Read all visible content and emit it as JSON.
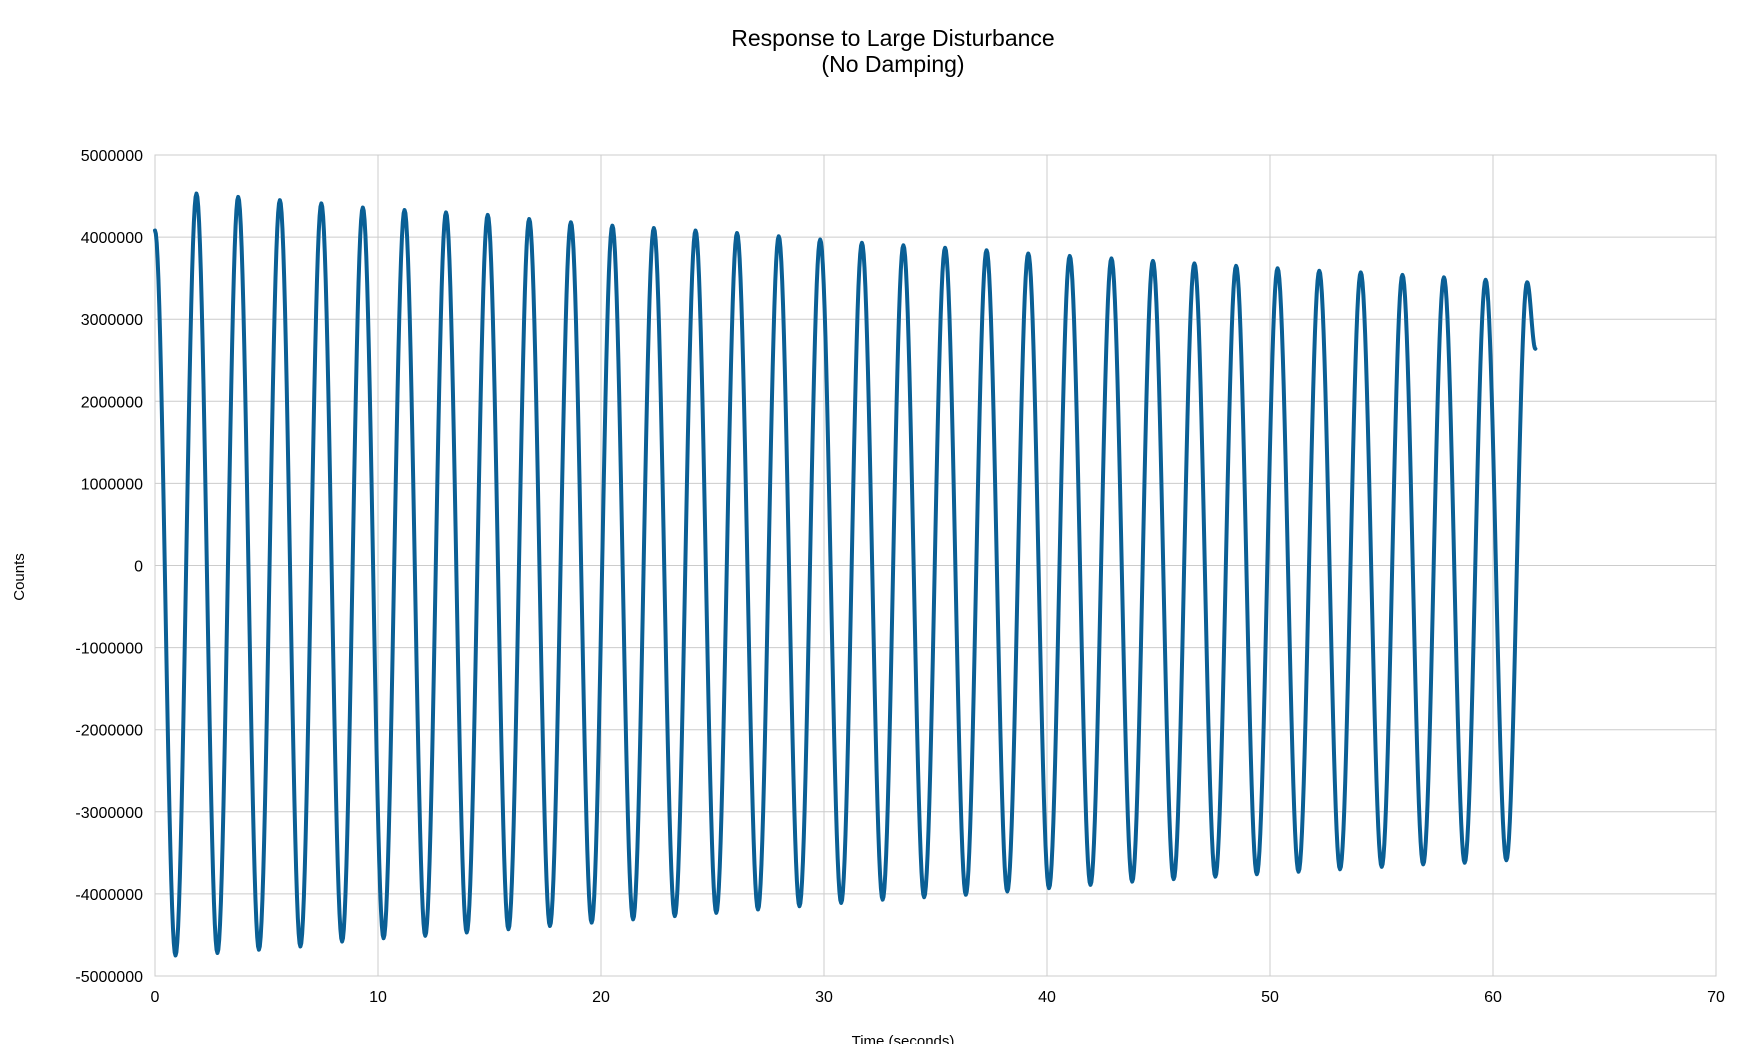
{
  "chart_data": {
    "type": "line",
    "title": [
      "Response to Large Disturbance",
      "(No Damping)"
    ],
    "xlabel": "Time (seconds)",
    "ylabel": "Counts",
    "xlim": [
      0,
      70
    ],
    "ylim": [
      -5000000,
      5000000
    ],
    "x_ticks": [
      0,
      10,
      20,
      30,
      40,
      50,
      60,
      70
    ],
    "y_ticks": [
      5000000,
      4000000,
      3000000,
      2000000,
      1000000,
      0,
      -1000000,
      -2000000,
      -3000000,
      -4000000,
      -5000000
    ],
    "grid": true,
    "legend": "none",
    "series_color": "#0a5f95",
    "series": [
      {
        "x": [
          0.0,
          0.92,
          1.86,
          2.8,
          3.73,
          4.66,
          5.6,
          6.52,
          7.46,
          8.39,
          9.32,
          10.25,
          11.19,
          12.12,
          13.05,
          13.98,
          14.92,
          15.85,
          16.78,
          17.71,
          18.65,
          19.58,
          20.51,
          21.44,
          22.37,
          23.31,
          24.24,
          25.17,
          26.1,
          27.04,
          27.97,
          28.9,
          29.83,
          30.77,
          31.7,
          32.63,
          33.56,
          34.49,
          35.43,
          36.36,
          37.29,
          38.22,
          39.16,
          40.09,
          41.02,
          41.95,
          42.89,
          43.82,
          44.75,
          45.68,
          46.61,
          47.55,
          48.48,
          49.41,
          50.34,
          51.28,
          52.21,
          53.14,
          54.07,
          55.01,
          55.94,
          56.87,
          57.8,
          58.73,
          59.67,
          60.6,
          61.53,
          61.9
        ],
        "y": [
          4080000,
          -4750000,
          4530000,
          -4720000,
          4490000,
          -4680000,
          4450000,
          -4640000,
          4410000,
          -4580000,
          4360000,
          -4540000,
          4330000,
          -4510000,
          4300000,
          -4470000,
          4270000,
          -4430000,
          4220000,
          -4390000,
          4180000,
          -4350000,
          4140000,
          -4310000,
          4110000,
          -4270000,
          4080000,
          -4230000,
          4050000,
          -4190000,
          4010000,
          -4150000,
          3970000,
          -4110000,
          3930000,
          -4070000,
          3900000,
          -4040000,
          3870000,
          -4010000,
          3840000,
          -3970000,
          3800000,
          -3930000,
          3770000,
          -3890000,
          3740000,
          -3850000,
          3710000,
          -3820000,
          3680000,
          -3790000,
          3650000,
          -3760000,
          3620000,
          -3730000,
          3590000,
          -3700000,
          3570000,
          -3670000,
          3540000,
          -3640000,
          3510000,
          -3620000,
          3480000,
          -3590000,
          3450000,
          2640000
        ]
      }
    ]
  }
}
